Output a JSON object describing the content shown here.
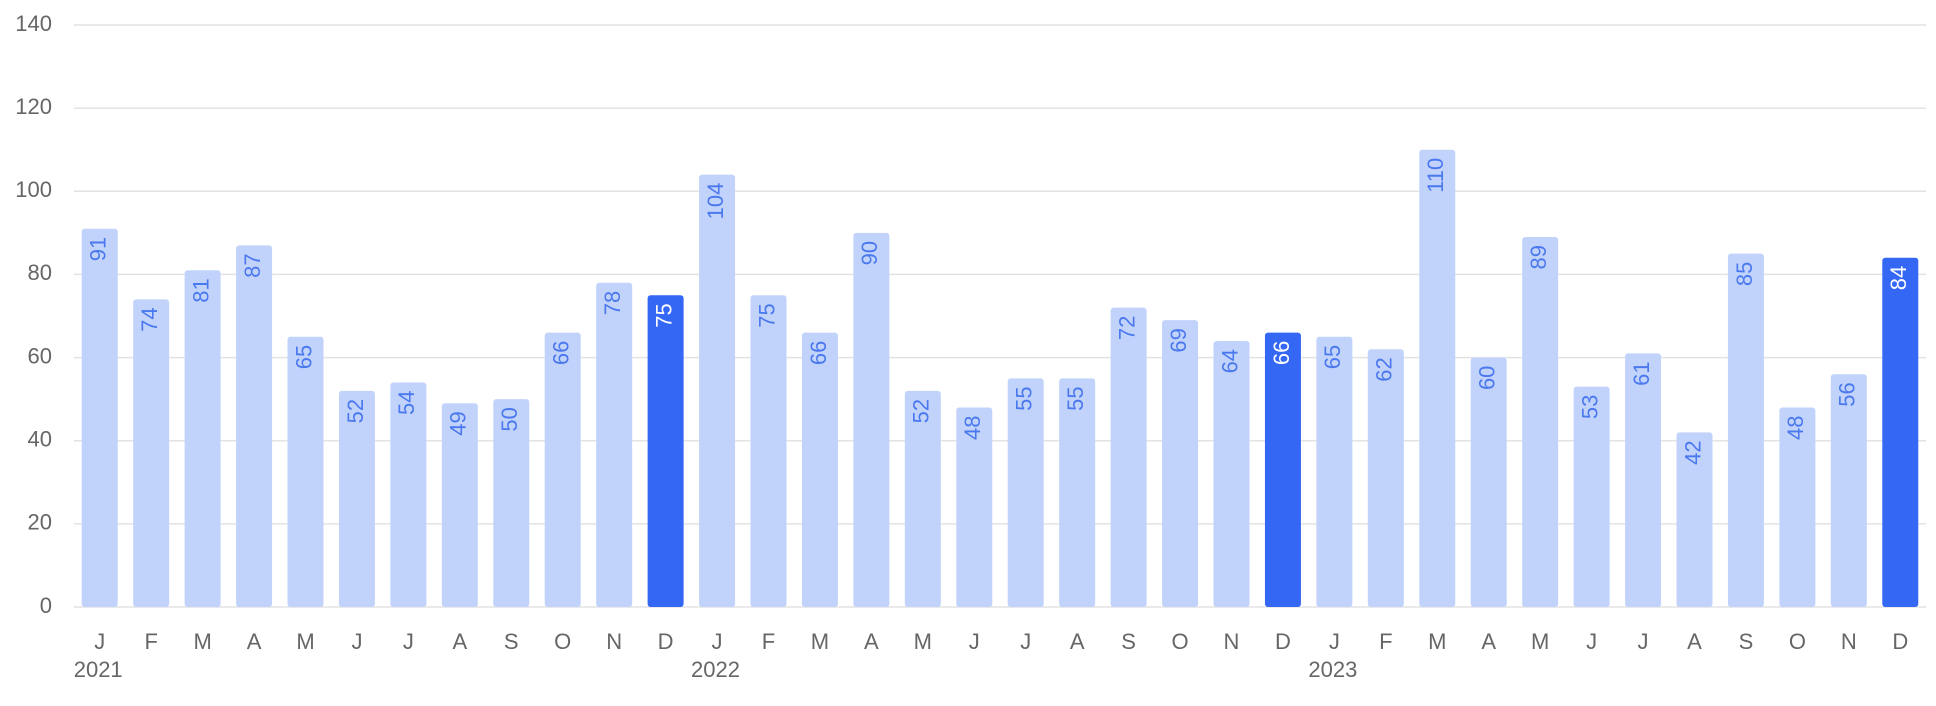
{
  "chart_data": {
    "type": "bar",
    "categories": [
      "J",
      "F",
      "M",
      "A",
      "M",
      "J",
      "J",
      "A",
      "S",
      "O",
      "N",
      "D",
      "J",
      "F",
      "M",
      "A",
      "M",
      "J",
      "J",
      "A",
      "S",
      "O",
      "N",
      "D",
      "J",
      "F",
      "M",
      "A",
      "M",
      "J",
      "J",
      "A",
      "S",
      "O",
      "N",
      "D"
    ],
    "year_labels": [
      "2021",
      null,
      null,
      null,
      null,
      null,
      null,
      null,
      null,
      null,
      null,
      null,
      "2022",
      null,
      null,
      null,
      null,
      null,
      null,
      null,
      null,
      null,
      null,
      null,
      "2023",
      null,
      null,
      null,
      null,
      null,
      null,
      null,
      null,
      null,
      null,
      null
    ],
    "values": [
      91,
      74,
      81,
      87,
      65,
      52,
      54,
      49,
      50,
      66,
      78,
      75,
      104,
      75,
      66,
      90,
      52,
      48,
      55,
      55,
      72,
      69,
      64,
      66,
      65,
      62,
      110,
      60,
      89,
      53,
      61,
      42,
      85,
      48,
      56,
      84
    ],
    "colors": [
      "#c2d3fb",
      "#c2d3fb",
      "#c2d3fb",
      "#c2d3fb",
      "#c2d3fb",
      "#c2d3fb",
      "#c2d3fb",
      "#c2d3fb",
      "#c2d3fb",
      "#c2d3fb",
      "#c2d3fb",
      "#3567f5",
      "#c2d3fb",
      "#c2d3fb",
      "#c2d3fb",
      "#c2d3fb",
      "#c2d3fb",
      "#c2d3fb",
      "#c2d3fb",
      "#c2d3fb",
      "#c2d3fb",
      "#c2d3fb",
      "#c2d3fb",
      "#3567f5",
      "#c2d3fb",
      "#c2d3fb",
      "#c2d3fb",
      "#c2d3fb",
      "#c2d3fb",
      "#c2d3fb",
      "#c2d3fb",
      "#c2d3fb",
      "#c2d3fb",
      "#c2d3fb",
      "#c2d3fb",
      "#3567f5"
    ],
    "ylim": [
      0,
      140
    ],
    "yticks": [
      0,
      20,
      40,
      60,
      80,
      100,
      120,
      140
    ],
    "grid": true
  }
}
